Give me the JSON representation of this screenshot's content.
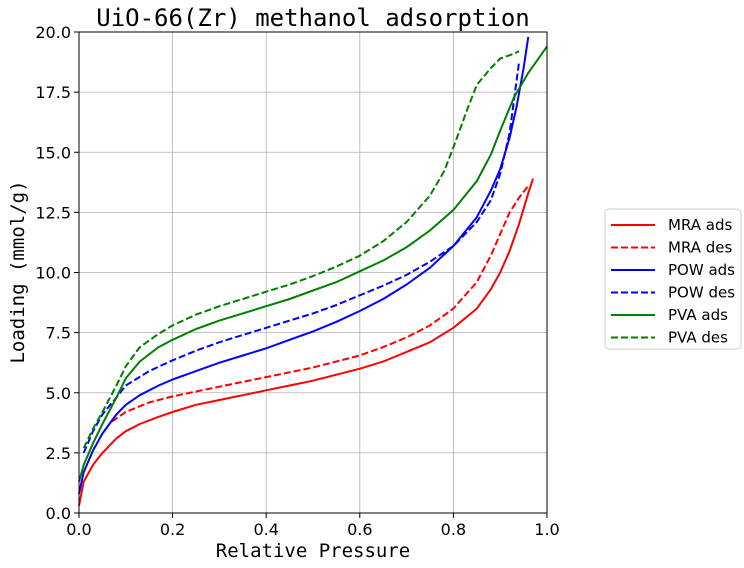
{
  "chart_data": {
    "type": "line",
    "title": "UiO-66(Zr) methanol adsorption",
    "xlabel": "Relative Pressure",
    "ylabel": "Loading (mmol/g)",
    "xlim": [
      0.0,
      1.0
    ],
    "ylim": [
      0.0,
      20.0
    ],
    "xticks": [
      0.0,
      0.2,
      0.4,
      0.6,
      0.8,
      1.0
    ],
    "yticks": [
      0.0,
      2.5,
      5.0,
      7.5,
      10.0,
      12.5,
      15.0,
      17.5,
      20.0
    ],
    "xtick_labels": [
      "0.0",
      "0.2",
      "0.4",
      "0.6",
      "0.8",
      "1.0"
    ],
    "ytick_labels": [
      "0.0",
      "2.5",
      "5.0",
      "7.5",
      "10.0",
      "12.5",
      "15.0",
      "17.5",
      "20.0"
    ],
    "grid": true,
    "legend_position": "outside-right",
    "series": [
      {
        "name": "MRA ads",
        "color": "#ff0000",
        "dash": "solid",
        "x": [
          0.0,
          0.01,
          0.03,
          0.05,
          0.08,
          0.1,
          0.13,
          0.17,
          0.2,
          0.25,
          0.3,
          0.35,
          0.4,
          0.45,
          0.5,
          0.55,
          0.6,
          0.65,
          0.7,
          0.75,
          0.8,
          0.85,
          0.88,
          0.9,
          0.92,
          0.94,
          0.96,
          0.97
        ],
        "y": [
          0.3,
          1.3,
          2.0,
          2.5,
          3.1,
          3.4,
          3.7,
          4.0,
          4.2,
          4.5,
          4.7,
          4.9,
          5.1,
          5.3,
          5.5,
          5.75,
          6.0,
          6.3,
          6.7,
          7.1,
          7.7,
          8.5,
          9.3,
          10.0,
          10.9,
          12.0,
          13.3,
          13.9
        ]
      },
      {
        "name": "MRA des",
        "color": "#ff0000",
        "dash": "dashed",
        "x": [
          0.07,
          0.1,
          0.15,
          0.2,
          0.25,
          0.3,
          0.35,
          0.4,
          0.45,
          0.5,
          0.55,
          0.6,
          0.65,
          0.7,
          0.75,
          0.8,
          0.85,
          0.88,
          0.9,
          0.92,
          0.94,
          0.96
        ],
        "y": [
          3.8,
          4.2,
          4.6,
          4.85,
          5.05,
          5.25,
          5.45,
          5.65,
          5.85,
          6.05,
          6.3,
          6.55,
          6.9,
          7.3,
          7.8,
          8.5,
          9.6,
          10.7,
          11.6,
          12.5,
          13.1,
          13.6
        ]
      },
      {
        "name": "POW ads",
        "color": "#0000ff",
        "dash": "solid",
        "x": [
          0.0,
          0.01,
          0.03,
          0.05,
          0.08,
          0.1,
          0.13,
          0.17,
          0.2,
          0.25,
          0.3,
          0.35,
          0.4,
          0.45,
          0.5,
          0.55,
          0.6,
          0.65,
          0.7,
          0.75,
          0.8,
          0.85,
          0.88,
          0.9,
          0.92,
          0.935,
          0.95,
          0.96
        ],
        "y": [
          0.8,
          1.7,
          2.6,
          3.3,
          4.1,
          4.5,
          4.9,
          5.3,
          5.55,
          5.9,
          6.25,
          6.55,
          6.85,
          7.2,
          7.55,
          7.95,
          8.4,
          8.9,
          9.5,
          10.2,
          11.1,
          12.3,
          13.4,
          14.3,
          15.6,
          16.9,
          18.5,
          19.8
        ]
      },
      {
        "name": "POW des",
        "color": "#0000ff",
        "dash": "dashed",
        "x": [
          0.01,
          0.03,
          0.05,
          0.08,
          0.1,
          0.15,
          0.2,
          0.25,
          0.3,
          0.35,
          0.4,
          0.45,
          0.5,
          0.55,
          0.6,
          0.65,
          0.7,
          0.75,
          0.8,
          0.85,
          0.88,
          0.9,
          0.92,
          0.94
        ],
        "y": [
          2.5,
          3.4,
          4.1,
          4.8,
          5.3,
          5.9,
          6.35,
          6.75,
          7.1,
          7.4,
          7.7,
          8.0,
          8.3,
          8.65,
          9.05,
          9.45,
          9.9,
          10.45,
          11.1,
          12.1,
          13.0,
          14.1,
          15.8,
          18.7
        ]
      },
      {
        "name": "PVA ads",
        "color": "#008000",
        "dash": "solid",
        "x": [
          0.0,
          0.01,
          0.03,
          0.05,
          0.08,
          0.1,
          0.13,
          0.17,
          0.2,
          0.25,
          0.3,
          0.35,
          0.4,
          0.45,
          0.5,
          0.55,
          0.6,
          0.65,
          0.7,
          0.75,
          0.8,
          0.85,
          0.88,
          0.9,
          0.93,
          0.96,
          1.0
        ],
        "y": [
          1.3,
          2.0,
          2.9,
          3.7,
          4.8,
          5.6,
          6.3,
          6.9,
          7.2,
          7.65,
          8.0,
          8.3,
          8.6,
          8.9,
          9.25,
          9.6,
          10.05,
          10.5,
          11.05,
          11.75,
          12.6,
          13.8,
          14.9,
          15.9,
          17.3,
          18.3,
          19.4
        ]
      },
      {
        "name": "PVA des",
        "color": "#008000",
        "dash": "dashed",
        "x": [
          0.01,
          0.03,
          0.05,
          0.08,
          0.1,
          0.13,
          0.17,
          0.2,
          0.25,
          0.3,
          0.35,
          0.4,
          0.45,
          0.5,
          0.55,
          0.6,
          0.65,
          0.7,
          0.75,
          0.78,
          0.8,
          0.83,
          0.85,
          0.88,
          0.9,
          0.93,
          0.94
        ],
        "y": [
          2.7,
          3.5,
          4.2,
          5.3,
          6.1,
          6.9,
          7.45,
          7.8,
          8.25,
          8.6,
          8.9,
          9.2,
          9.5,
          9.85,
          10.25,
          10.7,
          11.3,
          12.1,
          13.2,
          14.2,
          15.2,
          16.8,
          17.8,
          18.5,
          18.9,
          19.1,
          19.2
        ]
      }
    ]
  }
}
